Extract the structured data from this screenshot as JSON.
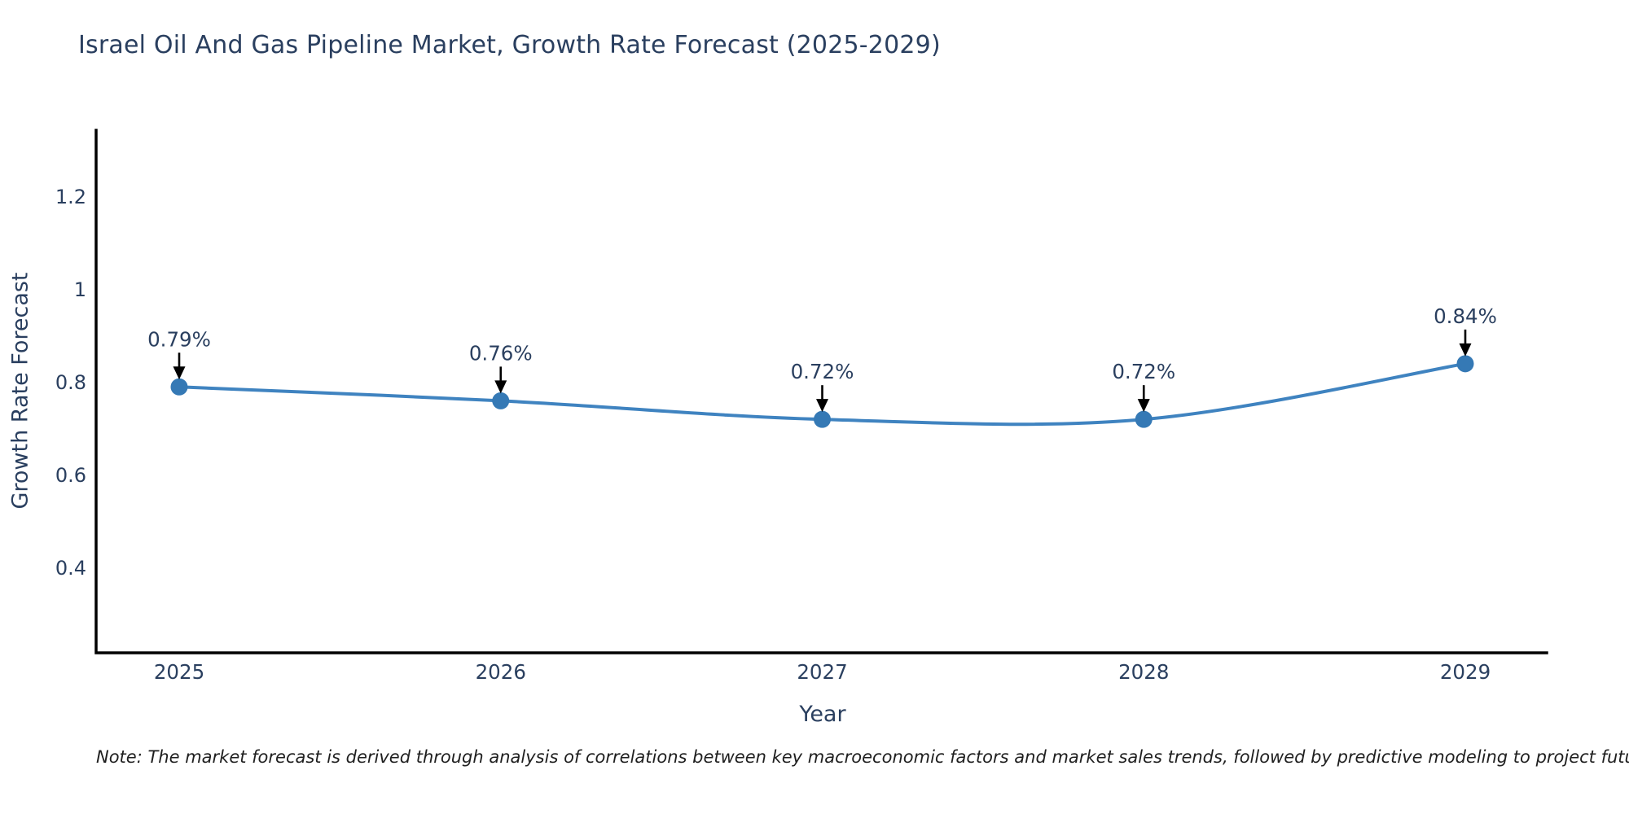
{
  "title": "Israel Oil And Gas Pipeline Market, Growth Rate Forecast (2025-2029)",
  "note": "Note: The market forecast is derived through analysis of correlations between key macroeconomic factors and market sales trends, followed by predictive modeling to project future sales",
  "chart_data": {
    "type": "line",
    "title": "Israel Oil And Gas Pipeline Market, Growth Rate Forecast (2025-2029)",
    "xlabel": "Year",
    "ylabel": "Growth Rate Forecast",
    "categories": [
      "2025",
      "2026",
      "2027",
      "2028",
      "2029"
    ],
    "series": [
      {
        "name": "Growth Rate Forecast",
        "values": [
          0.79,
          0.76,
          0.72,
          0.72,
          0.84
        ],
        "point_labels": [
          "0.79%",
          "0.76%",
          "0.72%",
          "0.72%",
          "0.84%"
        ]
      }
    ],
    "yticks": [
      0.4,
      0.6,
      0.8,
      1,
      1.2
    ],
    "ylim": [
      0.2165,
      1.3435
    ],
    "line_shape": "spline",
    "grid": false,
    "legend_position": "none",
    "colors": {
      "line": "#3f83c0",
      "marker": "#3579b5",
      "axis_line": "#000000",
      "text": "#2a3f5f",
      "annotation_arrow": "#000000"
    }
  }
}
